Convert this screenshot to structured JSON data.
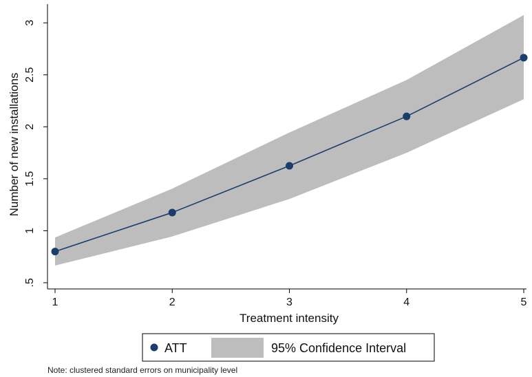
{
  "chart_data": {
    "type": "line",
    "title": "",
    "xlabel": "Treatment intensity",
    "ylabel": "Number of new installations",
    "x": [
      1,
      2,
      3,
      4,
      5
    ],
    "x_ticks": [
      1,
      2,
      3,
      4,
      5
    ],
    "y_ticks": [
      0.5,
      1,
      1.5,
      2,
      2.5,
      3
    ],
    "y_tick_labels": [
      ".5",
      "1",
      "1.5",
      "2",
      "2.5",
      "3"
    ],
    "xlim": [
      1,
      5
    ],
    "ylim": [
      0.44,
      3.18
    ],
    "grid": false,
    "legend_position": "bottom",
    "series": [
      {
        "name": "ATT",
        "kind": "line-markers",
        "color": "#1a3d6b",
        "y": [
          0.8,
          1.175,
          1.625,
          2.1,
          2.665
        ]
      },
      {
        "name": "95% Confidence Interval",
        "kind": "band",
        "color": "#bdbdbd",
        "lower": [
          0.665,
          0.945,
          1.305,
          1.75,
          2.265
        ],
        "upper": [
          0.935,
          1.405,
          1.945,
          2.45,
          3.075
        ]
      }
    ],
    "note": "Note: clustered standard errors on municipality level"
  }
}
